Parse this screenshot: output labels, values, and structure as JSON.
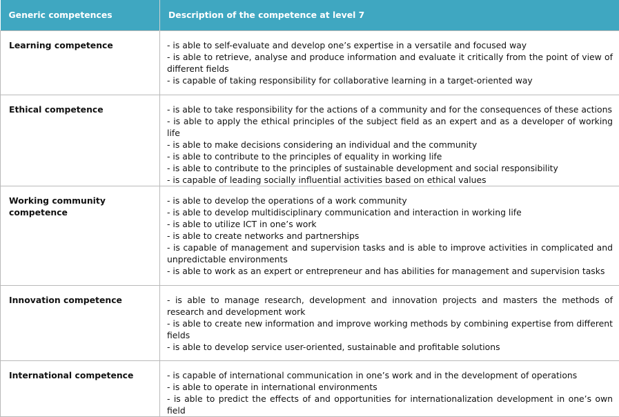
{
  "header": {
    "columns": [
      "Generic competences",
      "Description of the competence at level 7"
    ]
  },
  "table": {
    "rows": [
      {
        "competence": "Learning competence",
        "items": [
          "- is able to self-evaluate and develop one’s expertise in a versatile and focused way",
          "- is able to retrieve, analyse and produce information and evaluate it critically from the point of view of different fields",
          "- is capable of taking responsibility for collaborative learning in a target-oriented way"
        ]
      },
      {
        "competence": "Ethical competence",
        "items": [
          "- is able to take responsibility for the actions of a community and for the consequences of these actions",
          "- is able to apply the ethical principles of the subject field as an expert and as a developer of working life",
          "- is able to make decisions considering an individual and the community",
          "- is able to contribute to the principles of equality in working life",
          "- is able to contribute to the principles of sustainable development and social responsibility",
          "- is capable of leading socially influential activities based on ethical values"
        ]
      },
      {
        "competence": "Working community competence",
        "items": [
          "- is able to develop the operations of a work community",
          "- is able to develop multidisciplinary communication and interaction in working life",
          "- is able to utilize ICT in one’s work",
          "- is able to create networks and partnerships",
          "- is capable of management and supervision tasks and is able to improve activities in complicated and unpredictable environments",
          "- is able to work as an expert or entrepreneur and has abilities for management and supervision tasks"
        ]
      },
      {
        "competence": "Innovation competence",
        "items": [
          "- is able to manage research, development and innovation projects and masters the methods of research and development work",
          "- is able to create new information and improve working methods by combining expertise from different fields",
          "- is able to develop service user-oriented, sustainable and profitable solutions"
        ]
      },
      {
        "competence": "International competence",
        "items": [
          "- is capable of international communication in one’s work and in the development of operations",
          "- is able to operate in international environments",
          "- is able to predict the effects of and opportunities for internationalization development in one’s own field"
        ]
      }
    ]
  }
}
